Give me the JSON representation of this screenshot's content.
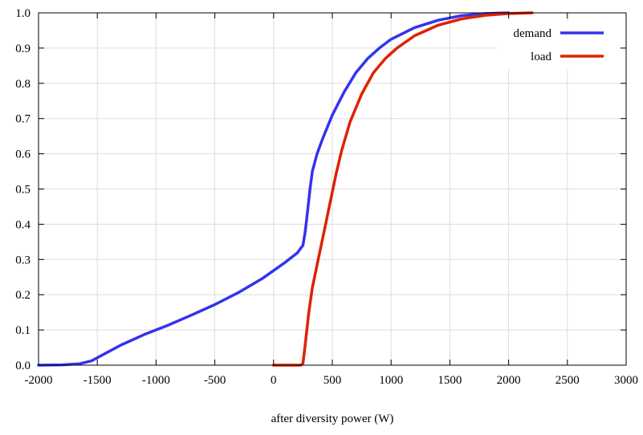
{
  "chart_data": {
    "type": "line",
    "title": "",
    "xlabel": "after diversity power (W)",
    "ylabel": "",
    "xlim": [
      -2000,
      3000
    ],
    "ylim": [
      0,
      1
    ],
    "x_ticks": [
      -2000,
      -1500,
      -1000,
      -500,
      0,
      500,
      1000,
      1500,
      2000,
      2500,
      3000
    ],
    "y_ticks": [
      0,
      0.1,
      0.2,
      0.3,
      0.4,
      0.5,
      0.6,
      0.7,
      0.8,
      0.9,
      1.0
    ],
    "x_tick_labels": [
      "-2000",
      "-1500",
      "-1000",
      "-500",
      "0",
      "500",
      "1000",
      "1500",
      "2000",
      "2500",
      "3000"
    ],
    "y_tick_labels": [
      "0.0",
      "0.1",
      "0.2",
      "0.3",
      "0.4",
      "0.5",
      "0.6",
      "0.7",
      "0.8",
      "0.9",
      "1.0"
    ],
    "grid": true,
    "legend_position": "top-right",
    "series": [
      {
        "name": "demand",
        "color": "#3333ee",
        "points": [
          [
            -2000,
            0.0
          ],
          [
            -1800,
            0.001
          ],
          [
            -1650,
            0.004
          ],
          [
            -1550,
            0.012
          ],
          [
            -1450,
            0.03
          ],
          [
            -1300,
            0.057
          ],
          [
            -1100,
            0.087
          ],
          [
            -900,
            0.113
          ],
          [
            -700,
            0.142
          ],
          [
            -500,
            0.172
          ],
          [
            -300,
            0.206
          ],
          [
            -100,
            0.245
          ],
          [
            100,
            0.292
          ],
          [
            200,
            0.318
          ],
          [
            250,
            0.34
          ],
          [
            270,
            0.38
          ],
          [
            290,
            0.44
          ],
          [
            310,
            0.5
          ],
          [
            330,
            0.55
          ],
          [
            370,
            0.6
          ],
          [
            420,
            0.645
          ],
          [
            500,
            0.71
          ],
          [
            600,
            0.775
          ],
          [
            700,
            0.83
          ],
          [
            800,
            0.87
          ],
          [
            900,
            0.9
          ],
          [
            1000,
            0.925
          ],
          [
            1200,
            0.958
          ],
          [
            1400,
            0.979
          ],
          [
            1600,
            0.992
          ],
          [
            1800,
            0.998
          ],
          [
            2000,
            1.0
          ]
        ]
      },
      {
        "name": "load",
        "color": "#dd2200",
        "points": [
          [
            0,
            0.0
          ],
          [
            230,
            0.0
          ],
          [
            250,
            0.005
          ],
          [
            270,
            0.06
          ],
          [
            300,
            0.15
          ],
          [
            330,
            0.22
          ],
          [
            380,
            0.3
          ],
          [
            430,
            0.38
          ],
          [
            480,
            0.46
          ],
          [
            530,
            0.54
          ],
          [
            580,
            0.61
          ],
          [
            650,
            0.69
          ],
          [
            750,
            0.77
          ],
          [
            850,
            0.83
          ],
          [
            950,
            0.87
          ],
          [
            1050,
            0.9
          ],
          [
            1200,
            0.935
          ],
          [
            1400,
            0.965
          ],
          [
            1600,
            0.983
          ],
          [
            1800,
            0.993
          ],
          [
            2000,
            0.998
          ],
          [
            2200,
            1.0
          ]
        ]
      }
    ]
  }
}
